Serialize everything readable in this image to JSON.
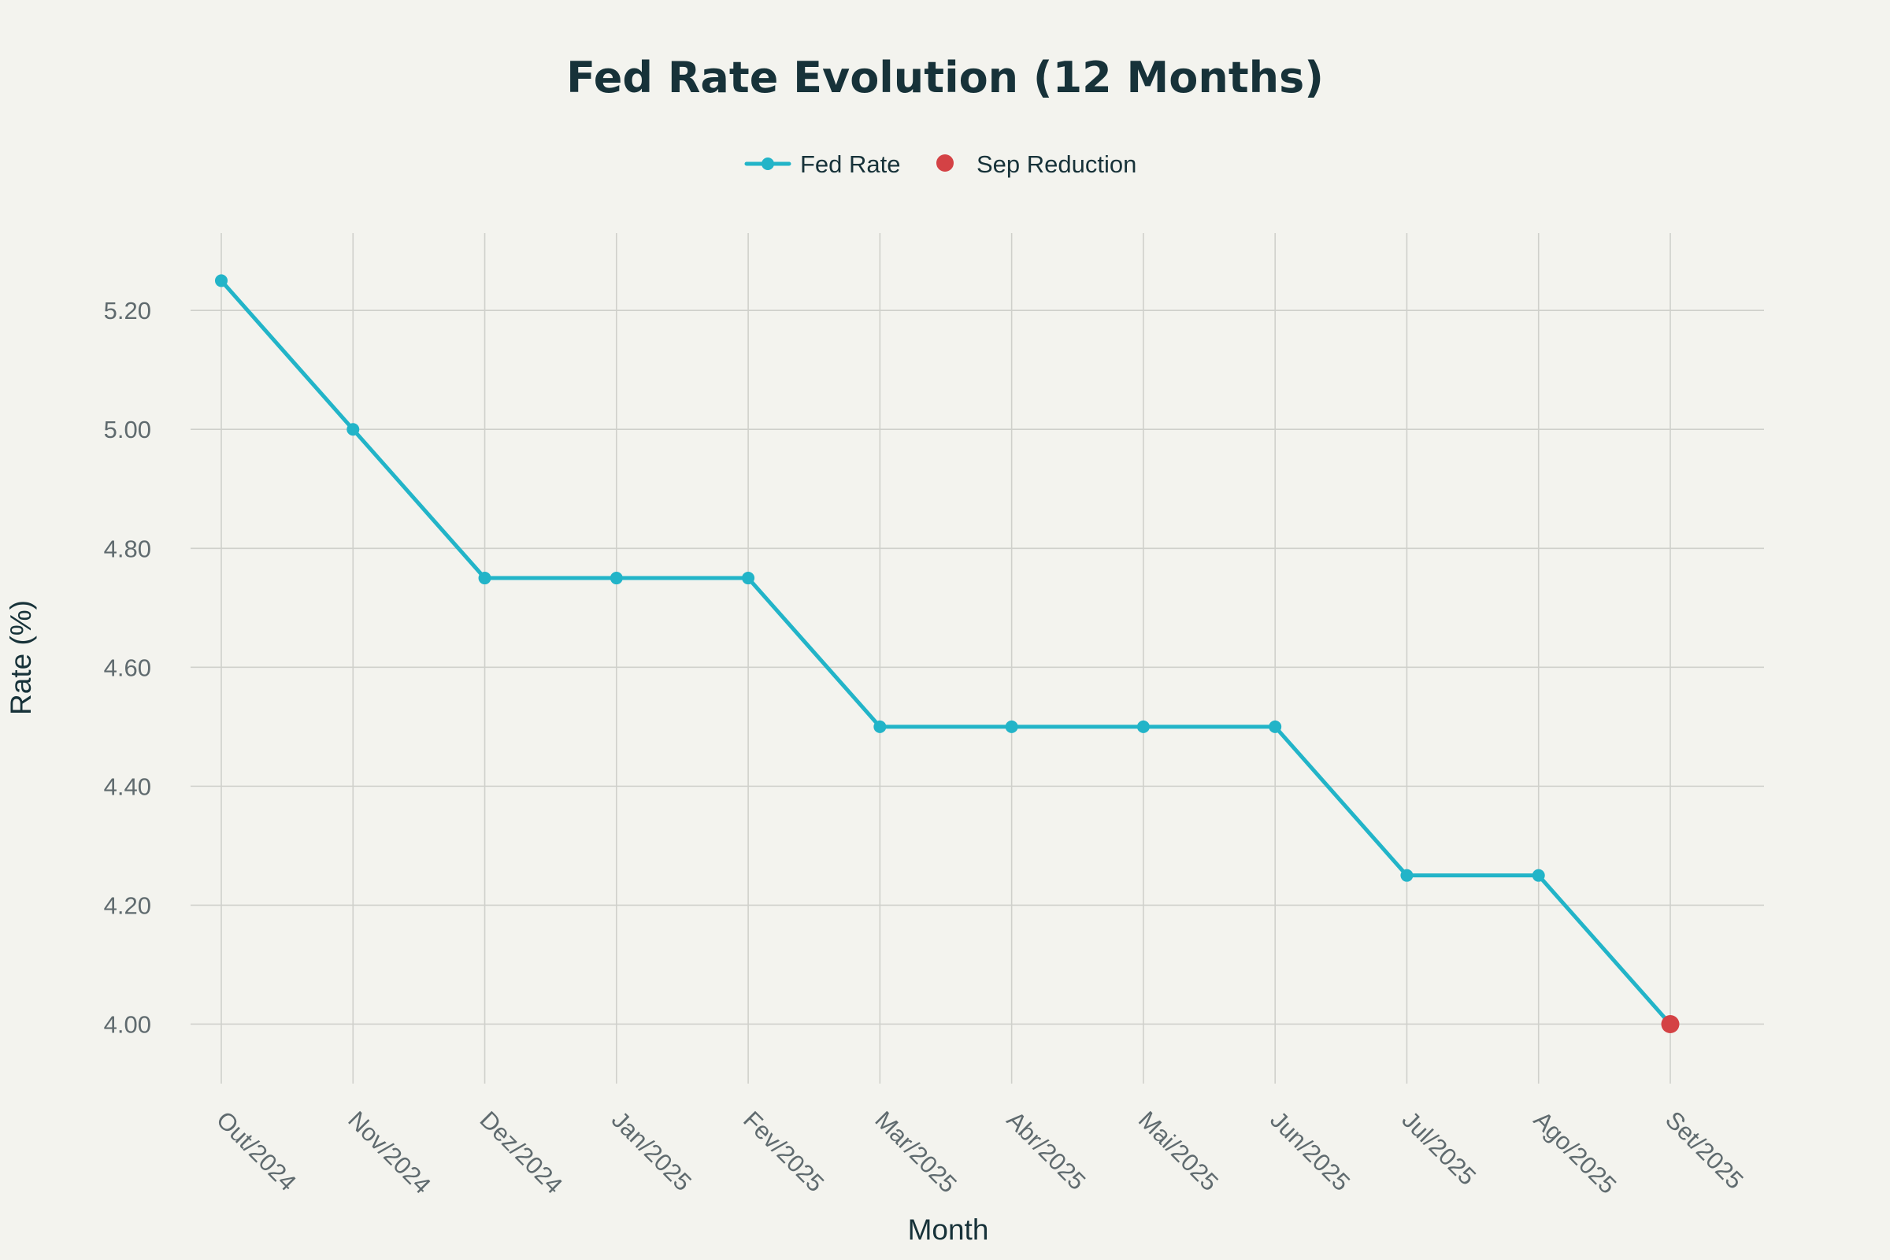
{
  "chart_data": {
    "type": "line",
    "title": "Fed Rate Evolution (12 Months)",
    "xlabel": "Month",
    "ylabel": "Rate (%)",
    "ylim": [
      3.9,
      5.33
    ],
    "yticks": [
      4.0,
      4.2,
      4.4,
      4.6,
      4.8,
      5.0,
      5.2
    ],
    "ytick_labels": [
      "4.00",
      "4.20",
      "4.40",
      "4.60",
      "4.80",
      "5.00",
      "5.20"
    ],
    "categories": [
      "Out/2024",
      "Nov/2024",
      "Dez/2024",
      "Jan/2025",
      "Fev/2025",
      "Mar/2025",
      "Abr/2025",
      "Mai/2025",
      "Jun/2025",
      "Jul/2025",
      "Ago/2025",
      "Set/2025"
    ],
    "grid": true,
    "legend": {
      "position": "top-center",
      "entries": [
        "Fed Rate",
        "Sep Reduction"
      ]
    },
    "series": [
      {
        "name": "Fed Rate",
        "mode": "lines+markers",
        "color": "#22b4c8",
        "values": [
          5.25,
          5.0,
          4.75,
          4.75,
          4.75,
          4.5,
          4.5,
          4.5,
          4.5,
          4.25,
          4.25,
          4.0
        ]
      },
      {
        "name": "Sep Reduction",
        "mode": "markers",
        "color": "#d44245",
        "points": [
          {
            "category": "Set/2025",
            "value": 4.0
          }
        ]
      }
    ]
  }
}
